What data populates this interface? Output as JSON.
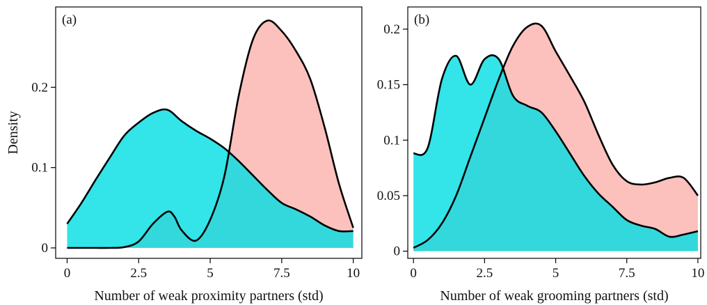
{
  "colors": {
    "series_cyan": "#00DDE3",
    "series_pink": "#F8766D",
    "frame": "#000000"
  },
  "chart_data": [
    {
      "type": "area",
      "panel_label": "(a)",
      "xlabel": "Number of weak proximity partners (std)",
      "ylabel": "Density",
      "xlim": [
        -0.4,
        10.3
      ],
      "ylim": [
        -0.013,
        0.3
      ],
      "xticks": [
        0,
        2.5,
        5,
        7.5,
        10
      ],
      "xtick_labels": [
        "0",
        "2.5",
        "5",
        "7.5",
        "10"
      ],
      "yticks": [
        0,
        0.1,
        0.2
      ],
      "ytick_labels": [
        "0",
        "0.1",
        "0.2"
      ],
      "grid": false,
      "legend": "none",
      "series": [
        {
          "color": "#00DDE3",
          "x": [
            0,
            0.5,
            1,
            1.5,
            2,
            2.5,
            3,
            3.5,
            4,
            4.5,
            5,
            5.5,
            6,
            6.5,
            7,
            7.5,
            8,
            8.5,
            9,
            9.5,
            10
          ],
          "y": [
            0.03,
            0.056,
            0.085,
            0.113,
            0.14,
            0.156,
            0.168,
            0.172,
            0.158,
            0.146,
            0.136,
            0.124,
            0.108,
            0.09,
            0.072,
            0.056,
            0.048,
            0.039,
            0.028,
            0.021,
            0.021
          ]
        },
        {
          "color": "#F8766D",
          "x": [
            0,
            0.5,
            1,
            1.5,
            2,
            2.5,
            3,
            3.5,
            3.75,
            4,
            4.5,
            5,
            5.5,
            6,
            6.5,
            7,
            7.5,
            8,
            8.5,
            9,
            9.5,
            10
          ],
          "y": [
            0,
            0,
            0,
            0,
            0.001,
            0.008,
            0.03,
            0.045,
            0.039,
            0.022,
            0.009,
            0.035,
            0.09,
            0.19,
            0.26,
            0.283,
            0.27,
            0.245,
            0.21,
            0.15,
            0.08,
            0.025
          ]
        }
      ]
    },
    {
      "type": "area",
      "panel_label": "(b)",
      "xlabel": "Number of weak grooming partners (std)",
      "ylabel": "",
      "xlim": [
        -0.2,
        10.1
      ],
      "ylim": [
        -0.0065,
        0.22
      ],
      "xticks": [
        0,
        2.5,
        5,
        7.5,
        10
      ],
      "xtick_labels": [
        "0",
        "2.5",
        "5",
        "7.5",
        "10"
      ],
      "yticks": [
        0,
        0.05,
        0.1,
        0.15,
        0.2
      ],
      "ytick_labels": [
        "0",
        "0.05",
        "0.1",
        "0.15",
        "0.2"
      ],
      "grid": false,
      "legend": "none",
      "series": [
        {
          "color": "#00DDE3",
          "x": [
            0,
            0.5,
            1,
            1.5,
            2,
            2.5,
            3,
            3.5,
            4,
            4.5,
            5,
            5.5,
            6,
            6.5,
            7,
            7.5,
            8,
            8.5,
            9,
            9.5,
            10
          ],
          "y": [
            0.088,
            0.093,
            0.155,
            0.176,
            0.15,
            0.173,
            0.173,
            0.14,
            0.131,
            0.125,
            0.108,
            0.088,
            0.068,
            0.052,
            0.04,
            0.028,
            0.023,
            0.02,
            0.013,
            0.015,
            0.018
          ]
        },
        {
          "color": "#F8766D",
          "x": [
            0,
            0.5,
            1,
            1.5,
            2,
            2.5,
            3,
            3.5,
            4,
            4.5,
            5,
            5.5,
            6,
            6.5,
            7,
            7.5,
            8,
            8.5,
            9,
            9.5,
            10
          ],
          "y": [
            0.003,
            0.01,
            0.025,
            0.05,
            0.085,
            0.12,
            0.155,
            0.185,
            0.202,
            0.203,
            0.18,
            0.158,
            0.135,
            0.105,
            0.078,
            0.063,
            0.06,
            0.062,
            0.066,
            0.066,
            0.05
          ]
        }
      ]
    }
  ]
}
